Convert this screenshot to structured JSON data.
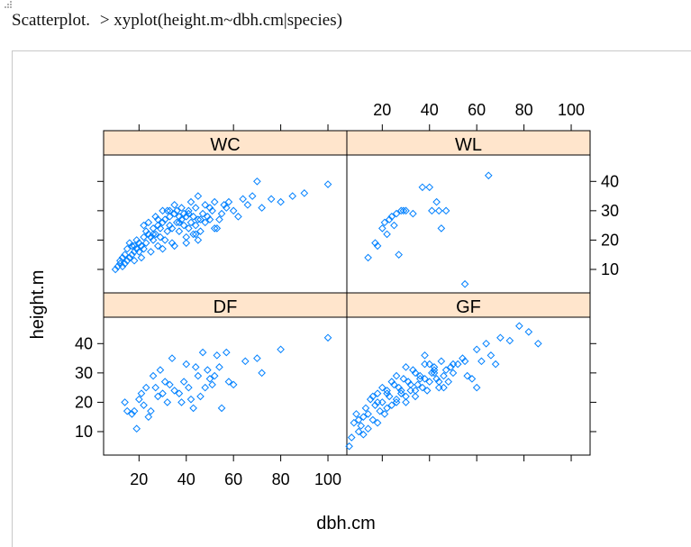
{
  "caption": {
    "label": "Scatterplot.",
    "code": "> xyplot(height.m~dbh.cm|species)"
  },
  "chart_data": {
    "type": "scatter",
    "layout": "2x2 lattice panels",
    "xlabel": "dbh.cm",
    "ylabel": "height.m",
    "xlim": [
      5,
      108
    ],
    "ylim": [
      2,
      49
    ],
    "x_ticks": [
      20,
      40,
      60,
      80,
      100
    ],
    "y_ticks": [
      10,
      20,
      30,
      40
    ],
    "strip_color": "#ffe5cc",
    "point_color": "#0080ff",
    "marker": "open-diamond",
    "panels": [
      {
        "name": "WC",
        "row": 0,
        "col": 0,
        "x": [
          10,
          11,
          12,
          12,
          13,
          13,
          14,
          14,
          15,
          15,
          16,
          16,
          17,
          17,
          18,
          18,
          18,
          19,
          19,
          20,
          20,
          21,
          21,
          22,
          22,
          23,
          23,
          24,
          24,
          25,
          25,
          26,
          26,
          27,
          27,
          28,
          28,
          29,
          29,
          30,
          30,
          31,
          31,
          32,
          32,
          33,
          33,
          34,
          34,
          35,
          35,
          36,
          36,
          37,
          37,
          38,
          38,
          39,
          39,
          40,
          40,
          41,
          41,
          42,
          42,
          43,
          43,
          44,
          44,
          45,
          45,
          46,
          47,
          48,
          48,
          49,
          50,
          50,
          51,
          52,
          53,
          54,
          55,
          56,
          57,
          58,
          60,
          62,
          64,
          66,
          68,
          70,
          72,
          76,
          80,
          85,
          90,
          100,
          30,
          35,
          40,
          45,
          22,
          26,
          33,
          44,
          52,
          28,
          37,
          41,
          46
        ],
        "y": [
          10,
          11,
          12,
          13,
          11,
          14,
          12,
          15,
          13,
          17,
          14,
          19,
          15,
          18,
          16,
          18,
          13,
          17,
          20,
          16,
          19,
          14,
          18,
          21,
          17,
          23,
          19,
          22,
          26,
          16,
          21,
          24,
          20,
          22,
          28,
          18,
          25,
          21,
          24,
          26,
          30,
          20,
          27,
          23,
          30,
          25,
          28,
          19,
          24,
          29,
          32,
          26,
          30,
          23,
          28,
          27,
          31,
          25,
          29,
          21,
          28,
          24,
          30,
          26,
          33,
          22,
          28,
          25,
          31,
          27,
          35,
          23,
          29,
          26,
          32,
          28,
          27,
          31,
          30,
          33,
          24,
          27,
          29,
          32,
          31,
          33,
          30,
          28,
          34,
          32,
          35,
          40,
          31,
          34,
          33,
          35,
          36,
          39,
          17,
          18,
          19,
          20,
          25,
          22,
          30,
          22,
          24,
          27,
          26,
          29,
          27
        ]
      },
      {
        "name": "WL",
        "row": 0,
        "col": 1,
        "x": [
          14,
          17,
          18,
          20,
          21,
          22,
          23,
          24,
          25,
          26,
          27,
          28,
          29,
          30,
          33,
          37,
          40,
          41,
          43,
          44,
          45,
          47,
          55,
          65
        ],
        "y": [
          14,
          19,
          18,
          24,
          26,
          22,
          27,
          28,
          25,
          29,
          15,
          30,
          30,
          30,
          29,
          38,
          38,
          30,
          33,
          30,
          24,
          30,
          5,
          42
        ],
        "comment": "sparse species"
      },
      {
        "name": "DF",
        "row": 1,
        "col": 0,
        "x": [
          14,
          15,
          17,
          18,
          19,
          20,
          21,
          22,
          23,
          24,
          25,
          26,
          27,
          28,
          29,
          30,
          31,
          32,
          33,
          34,
          35,
          37,
          38,
          39,
          40,
          41,
          42,
          43,
          44,
          45,
          46,
          47,
          48,
          49,
          50,
          51,
          52,
          53,
          54,
          55,
          57,
          58,
          60,
          65,
          70,
          72,
          80,
          100
        ],
        "y": [
          20,
          17,
          16,
          17,
          11,
          21,
          23,
          19,
          25,
          15,
          17,
          29,
          25,
          22,
          31,
          23,
          27,
          20,
          26,
          35,
          24,
          23,
          20,
          27,
          33,
          25,
          21,
          18,
          32,
          29,
          22,
          37,
          25,
          31,
          28,
          26,
          29,
          36,
          32,
          18,
          37,
          27,
          26,
          34,
          35,
          30,
          38,
          42
        ]
      },
      {
        "name": "GF",
        "row": 1,
        "col": 1,
        "x": [
          6,
          7,
          8,
          9,
          10,
          11,
          12,
          13,
          14,
          15,
          16,
          17,
          18,
          19,
          20,
          21,
          22,
          23,
          24,
          25,
          26,
          27,
          28,
          29,
          30,
          31,
          32,
          33,
          34,
          35,
          36,
          37,
          38,
          39,
          40,
          41,
          42,
          43,
          44,
          45,
          46,
          47,
          48,
          49,
          50,
          52,
          54,
          56,
          58,
          60,
          62,
          64,
          66,
          68,
          70,
          74,
          78,
          82,
          86,
          16,
          18,
          20,
          22,
          24,
          26,
          28,
          30,
          32,
          34,
          36,
          38,
          40,
          42,
          44,
          10,
          12,
          14,
          18,
          22,
          26,
          30,
          34,
          38,
          42,
          46,
          50,
          55,
          60
        ],
        "y": [
          5,
          8,
          13,
          16,
          10,
          12,
          15,
          18,
          11,
          21,
          14,
          19,
          23,
          17,
          20,
          16,
          24,
          22,
          19,
          26,
          21,
          25,
          23,
          28,
          20,
          27,
          24,
          31,
          22,
          26,
          29,
          25,
          33,
          24,
          27,
          30,
          32,
          28,
          25,
          34,
          29,
          31,
          27,
          32,
          30,
          33,
          35,
          29,
          28,
          38,
          34,
          40,
          36,
          33,
          42,
          41,
          46,
          44,
          40,
          22,
          20,
          25,
          23,
          27,
          29,
          24,
          32,
          26,
          30,
          28,
          36,
          33,
          31,
          27,
          14,
          9,
          16,
          13,
          18,
          20,
          22,
          24,
          28,
          30,
          25,
          33,
          34,
          25
        ]
      }
    ]
  }
}
